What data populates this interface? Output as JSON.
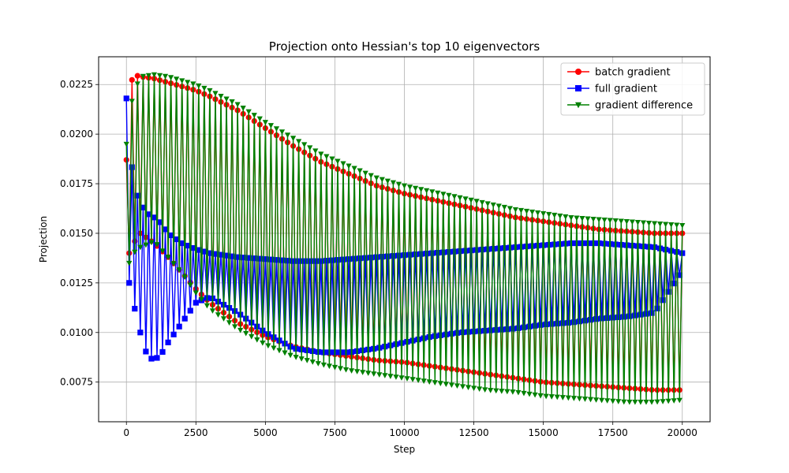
{
  "chart_data": {
    "type": "line",
    "title": "Projection onto Hessian's top 10 eigenvectors",
    "xlabel": "Step",
    "ylabel": "Projection",
    "xlim": [
      -1000,
      21000
    ],
    "ylim": [
      0.0055,
      0.0239
    ],
    "grid": true,
    "legend_position": "top-right",
    "x_ticks": [
      0,
      2500,
      5000,
      7500,
      10000,
      12500,
      15000,
      17500,
      20000
    ],
    "y_ticks": [
      0.0075,
      0.01,
      0.0125,
      0.015,
      0.0175,
      0.02,
      0.0225
    ],
    "x_tick_labels": [
      "0",
      "2500",
      "5000",
      "7500",
      "10000",
      "12500",
      "15000",
      "17500",
      "20000"
    ],
    "y_tick_labels": [
      "0.0075",
      "0.0100",
      "0.0125",
      "0.0150",
      "0.0175",
      "0.0200",
      "0.0225"
    ],
    "x_step": 100,
    "series": [
      {
        "name": "batch gradient",
        "color": "#ff0000",
        "marker": "circle",
        "envelope_steps": [
          0,
          100,
          250,
          500,
          1000,
          1500,
          2000,
          2500,
          3000,
          4000,
          5000,
          6000,
          7000,
          8000,
          9000,
          10000,
          11000,
          12000,
          13000,
          14000,
          15000,
          16000,
          17000,
          18000,
          19000,
          20000
        ],
        "upper": [
          0.0187,
          0.0222,
          0.023,
          0.0229,
          0.0228,
          0.0226,
          0.0224,
          0.0222,
          0.0219,
          0.0212,
          0.0203,
          0.0194,
          0.0186,
          0.018,
          0.0174,
          0.017,
          0.0167,
          0.0164,
          0.0161,
          0.0158,
          0.0156,
          0.0154,
          0.0152,
          0.0151,
          0.015,
          0.015
        ],
        "lower": [
          0.0185,
          0.014,
          0.0145,
          0.015,
          0.0145,
          0.0138,
          0.013,
          0.0122,
          0.0115,
          0.0105,
          0.0098,
          0.0093,
          0.009,
          0.0088,
          0.0086,
          0.0085,
          0.0083,
          0.0081,
          0.0079,
          0.0077,
          0.0075,
          0.0074,
          0.0073,
          0.0072,
          0.0071,
          0.0071
        ]
      },
      {
        "name": "full gradient",
        "color": "#0000ff",
        "marker": "square",
        "envelope_steps": [
          0,
          100,
          250,
          500,
          750,
          1000,
          1250,
          1500,
          2000,
          2500,
          3000,
          4000,
          5000,
          6000,
          7000,
          8000,
          9000,
          10000,
          11000,
          12000,
          13000,
          14000,
          15000,
          16000,
          17000,
          18000,
          19000,
          20000
        ],
        "upper": [
          0.0218,
          0.02,
          0.0175,
          0.0165,
          0.016,
          0.0158,
          0.0155,
          0.015,
          0.0145,
          0.0142,
          0.014,
          0.0138,
          0.0137,
          0.0136,
          0.0136,
          0.0137,
          0.0138,
          0.0139,
          0.014,
          0.0141,
          0.0142,
          0.0143,
          0.0144,
          0.0145,
          0.0145,
          0.0144,
          0.0143,
          0.014
        ],
        "lower": [
          0.0158,
          0.0125,
          0.0115,
          0.01,
          0.0088,
          0.0086,
          0.0089,
          0.0095,
          0.0105,
          0.0115,
          0.0118,
          0.011,
          0.01,
          0.0092,
          0.009,
          0.009,
          0.0092,
          0.0095,
          0.0098,
          0.01,
          0.0101,
          0.0102,
          0.0104,
          0.0105,
          0.0107,
          0.0108,
          0.011,
          0.0131
        ]
      },
      {
        "name": "gradient difference",
        "color": "#008000",
        "marker": "triangle-down",
        "envelope_steps": [
          0,
          100,
          250,
          500,
          1000,
          1500,
          2000,
          2500,
          3000,
          4000,
          5000,
          6000,
          7000,
          8000,
          9000,
          10000,
          11000,
          12000,
          13000,
          14000,
          15000,
          16000,
          17000,
          18000,
          19000,
          20000
        ],
        "upper": [
          0.0195,
          0.021,
          0.022,
          0.0229,
          0.023,
          0.0229,
          0.0227,
          0.0225,
          0.0222,
          0.0215,
          0.0206,
          0.0198,
          0.019,
          0.0184,
          0.0178,
          0.0174,
          0.0171,
          0.0168,
          0.0165,
          0.0162,
          0.016,
          0.0158,
          0.0157,
          0.0156,
          0.0155,
          0.0154
        ],
        "lower": [
          0.013,
          0.0135,
          0.014,
          0.0143,
          0.0146,
          0.0138,
          0.013,
          0.012,
          0.0112,
          0.0102,
          0.0094,
          0.0088,
          0.0084,
          0.0081,
          0.0079,
          0.0077,
          0.0075,
          0.0073,
          0.0071,
          0.007,
          0.0068,
          0.0067,
          0.0066,
          0.0065,
          0.0065,
          0.0066
        ]
      }
    ]
  }
}
